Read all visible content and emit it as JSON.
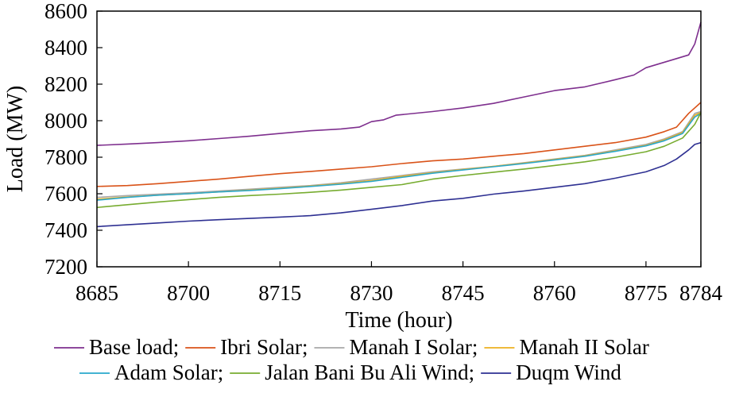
{
  "chart_data": {
    "type": "line",
    "xlabel": "Time (hour)",
    "ylabel": "Load (MW)",
    "xlim": [
      8685,
      8784
    ],
    "ylim": [
      7200,
      8600
    ],
    "xticks": [
      8685,
      8700,
      8715,
      8730,
      8745,
      8760,
      8775,
      8784
    ],
    "yticks": [
      7200,
      7400,
      7600,
      7800,
      8000,
      8200,
      8400,
      8600
    ],
    "grid": false,
    "legend_position": "bottom",
    "legend_rows": [
      [
        "Base load;",
        "Ibri Solar;",
        "Manah I Solar;",
        "Manah II Solar"
      ],
      [
        "Adam Solar;",
        "Jalan Bani Bu Ali Wind;",
        "Duqm Wind"
      ]
    ],
    "series": [
      {
        "name": "Base load;",
        "color": "#7E2F8E",
        "points": [
          [
            8685,
            7865
          ],
          [
            8690,
            7872
          ],
          [
            8695,
            7880
          ],
          [
            8700,
            7890
          ],
          [
            8705,
            7902
          ],
          [
            8710,
            7915
          ],
          [
            8715,
            7930
          ],
          [
            8720,
            7945
          ],
          [
            8725,
            7955
          ],
          [
            8728,
            7965
          ],
          [
            8730,
            7995
          ],
          [
            8732,
            8005
          ],
          [
            8734,
            8030
          ],
          [
            8740,
            8050
          ],
          [
            8745,
            8070
          ],
          [
            8750,
            8095
          ],
          [
            8755,
            8130
          ],
          [
            8760,
            8165
          ],
          [
            8765,
            8185
          ],
          [
            8770,
            8225
          ],
          [
            8773,
            8250
          ],
          [
            8775,
            8290
          ],
          [
            8777,
            8310
          ],
          [
            8780,
            8340
          ],
          [
            8782,
            8360
          ],
          [
            8783,
            8420
          ],
          [
            8784,
            8540
          ]
        ]
      },
      {
        "name": "Ibri Solar;",
        "color": "#D95319",
        "points": [
          [
            8685,
            7640
          ],
          [
            8690,
            7645
          ],
          [
            8695,
            7655
          ],
          [
            8700,
            7668
          ],
          [
            8705,
            7680
          ],
          [
            8710,
            7695
          ],
          [
            8715,
            7710
          ],
          [
            8720,
            7722
          ],
          [
            8725,
            7735
          ],
          [
            8730,
            7748
          ],
          [
            8735,
            7765
          ],
          [
            8740,
            7780
          ],
          [
            8745,
            7790
          ],
          [
            8750,
            7805
          ],
          [
            8755,
            7820
          ],
          [
            8760,
            7840
          ],
          [
            8765,
            7860
          ],
          [
            8770,
            7880
          ],
          [
            8775,
            7910
          ],
          [
            8778,
            7940
          ],
          [
            8780,
            7965
          ],
          [
            8782,
            8040
          ],
          [
            8784,
            8100
          ]
        ]
      },
      {
        "name": "Manah I Solar;",
        "color": "#A8A8A8",
        "points": [
          [
            8685,
            7580
          ],
          [
            8690,
            7590
          ],
          [
            8695,
            7598
          ],
          [
            8700,
            7605
          ],
          [
            8705,
            7615
          ],
          [
            8710,
            7625
          ],
          [
            8715,
            7635
          ],
          [
            8720,
            7645
          ],
          [
            8725,
            7660
          ],
          [
            8730,
            7680
          ],
          [
            8735,
            7700
          ],
          [
            8740,
            7720
          ],
          [
            8745,
            7735
          ],
          [
            8750,
            7750
          ],
          [
            8755,
            7770
          ],
          [
            8760,
            7790
          ],
          [
            8765,
            7810
          ],
          [
            8770,
            7840
          ],
          [
            8775,
            7870
          ],
          [
            8778,
            7900
          ],
          [
            8781,
            7940
          ],
          [
            8783,
            8040
          ],
          [
            8784,
            8050
          ]
        ]
      },
      {
        "name": "Manah II Solar",
        "color": "#EDB120",
        "points": [
          [
            8685,
            7570
          ],
          [
            8690,
            7582
          ],
          [
            8695,
            7592
          ],
          [
            8700,
            7600
          ],
          [
            8705,
            7610
          ],
          [
            8710,
            7620
          ],
          [
            8715,
            7630
          ],
          [
            8720,
            7642
          ],
          [
            8725,
            7655
          ],
          [
            8730,
            7672
          ],
          [
            8735,
            7695
          ],
          [
            8740,
            7715
          ],
          [
            8745,
            7733
          ],
          [
            8750,
            7750
          ],
          [
            8755,
            7768
          ],
          [
            8760,
            7788
          ],
          [
            8765,
            7808
          ],
          [
            8770,
            7835
          ],
          [
            8775,
            7865
          ],
          [
            8778,
            7895
          ],
          [
            8781,
            7935
          ],
          [
            8783,
            8030
          ],
          [
            8784,
            8045
          ]
        ]
      },
      {
        "name": "Adam Solar;",
        "color": "#2AA8CC",
        "points": [
          [
            8685,
            7565
          ],
          [
            8690,
            7580
          ],
          [
            8695,
            7592
          ],
          [
            8700,
            7600
          ],
          [
            8705,
            7610
          ],
          [
            8710,
            7618
          ],
          [
            8715,
            7628
          ],
          [
            8720,
            7640
          ],
          [
            8725,
            7652
          ],
          [
            8730,
            7668
          ],
          [
            8735,
            7690
          ],
          [
            8740,
            7712
          ],
          [
            8745,
            7730
          ],
          [
            8750,
            7748
          ],
          [
            8755,
            7765
          ],
          [
            8760,
            7785
          ],
          [
            8765,
            7805
          ],
          [
            8770,
            7832
          ],
          [
            8775,
            7862
          ],
          [
            8778,
            7890
          ],
          [
            8781,
            7930
          ],
          [
            8783,
            8020
          ],
          [
            8784,
            8040
          ]
        ]
      },
      {
        "name": "Jalan Bani Bu Ali Wind;",
        "color": "#77AC30",
        "points": [
          [
            8685,
            7525
          ],
          [
            8690,
            7540
          ],
          [
            8695,
            7555
          ],
          [
            8700,
            7568
          ],
          [
            8705,
            7580
          ],
          [
            8710,
            7590
          ],
          [
            8715,
            7598
          ],
          [
            8720,
            7608
          ],
          [
            8725,
            7620
          ],
          [
            8730,
            7635
          ],
          [
            8735,
            7650
          ],
          [
            8740,
            7680
          ],
          [
            8745,
            7700
          ],
          [
            8750,
            7718
          ],
          [
            8755,
            7735
          ],
          [
            8760,
            7755
          ],
          [
            8765,
            7775
          ],
          [
            8770,
            7800
          ],
          [
            8775,
            7830
          ],
          [
            8778,
            7860
          ],
          [
            8781,
            7905
          ],
          [
            8783,
            7980
          ],
          [
            8784,
            8045
          ]
        ]
      },
      {
        "name": "Duqm Wind",
        "color": "#2E3092",
        "points": [
          [
            8685,
            7420
          ],
          [
            8690,
            7430
          ],
          [
            8695,
            7440
          ],
          [
            8700,
            7450
          ],
          [
            8705,
            7458
          ],
          [
            8710,
            7465
          ],
          [
            8715,
            7472
          ],
          [
            8720,
            7480
          ],
          [
            8725,
            7495
          ],
          [
            8730,
            7515
          ],
          [
            8735,
            7535
          ],
          [
            8740,
            7560
          ],
          [
            8745,
            7575
          ],
          [
            8750,
            7598
          ],
          [
            8755,
            7615
          ],
          [
            8760,
            7635
          ],
          [
            8765,
            7655
          ],
          [
            8770,
            7685
          ],
          [
            8775,
            7720
          ],
          [
            8778,
            7755
          ],
          [
            8780,
            7790
          ],
          [
            8782,
            7840
          ],
          [
            8783,
            7870
          ],
          [
            8784,
            7880
          ]
        ]
      }
    ]
  }
}
